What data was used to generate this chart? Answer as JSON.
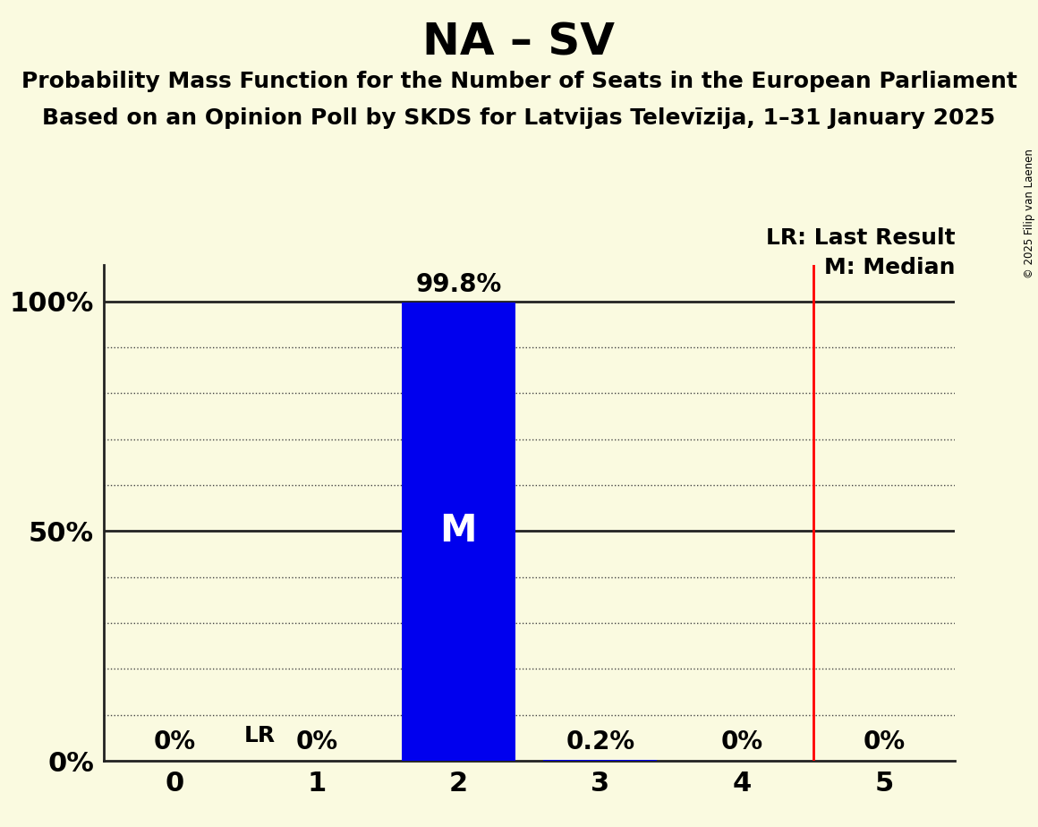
{
  "title": "NA – SV",
  "subtitle1": "Probability Mass Function for the Number of Seats in the European Parliament",
  "subtitle2": "Based on an Opinion Poll by SKDS for Latvijas Televīzija, 1–31 January 2025",
  "copyright": "© 2025 Filip van Laenen",
  "seats": [
    0,
    1,
    2,
    3,
    4,
    5
  ],
  "probabilities": [
    0.0,
    0.0,
    0.998,
    0.002,
    0.0,
    0.0
  ],
  "bar_color": "#0000ee",
  "last_result": 4.5,
  "median": 2,
  "median_label": "M",
  "lr_label": "LR",
  "lr_legend": "LR: Last Result",
  "m_legend": "M: Median",
  "background_color": "#fafae0",
  "bar_width": 0.8,
  "xlim": [
    -0.5,
    5.5
  ],
  "ylim": [
    0,
    1.08
  ],
  "yticks": [
    0.0,
    0.1,
    0.2,
    0.3,
    0.4,
    0.5,
    0.6,
    0.7,
    0.8,
    0.9,
    1.0
  ],
  "ytick_labels_show": [
    true,
    false,
    false,
    false,
    false,
    true,
    false,
    false,
    false,
    false,
    true
  ],
  "dotted_grid_yticks": [
    0.1,
    0.2,
    0.3,
    0.4,
    0.6,
    0.7,
    0.8,
    0.9
  ],
  "solid_grid_yticks": [
    0.5,
    1.0
  ],
  "title_fontsize": 36,
  "subtitle_fontsize": 18,
  "axis_label_fontsize": 22,
  "bar_label_fontsize": 20,
  "lr_label_fontsize": 18,
  "legend_fontsize": 18,
  "lr_line_color": "#ff0000",
  "solid_line_color": "#222222",
  "dotted_line_color": "#444444"
}
